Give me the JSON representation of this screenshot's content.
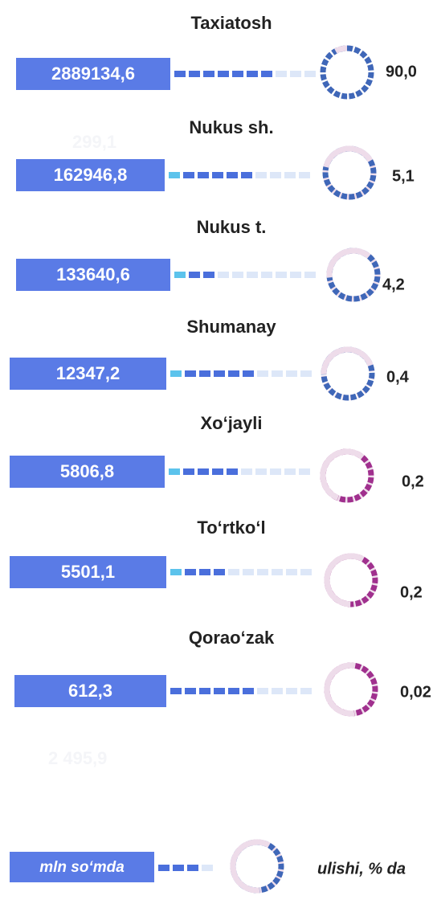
{
  "items": [
    {
      "name": "Taxiatosh",
      "value": "2889134,6",
      "share": "90,0"
    },
    {
      "name": "Nukus sh.",
      "value": "162946,8",
      "share": "5,1"
    },
    {
      "name": "Nukus t.",
      "value": "133640,6",
      "share": "4,2"
    },
    {
      "name": "Shumanay",
      "value": "12347,2",
      "share": "0,4"
    },
    {
      "name": "Xo‘jayli",
      "value": "5806,8",
      "share": "0,2"
    },
    {
      "name": "To‘rtko‘l",
      "value": "5501,1",
      "share": "0,2"
    },
    {
      "name": "Qorao‘zak",
      "value": "612,3",
      "share": "0,02"
    }
  ],
  "ghost_texts": [
    "299,1",
    "2 495,9"
  ],
  "legend": {
    "value_unit": "mln so‘mda",
    "share_unit": "ulishi, % da"
  }
}
